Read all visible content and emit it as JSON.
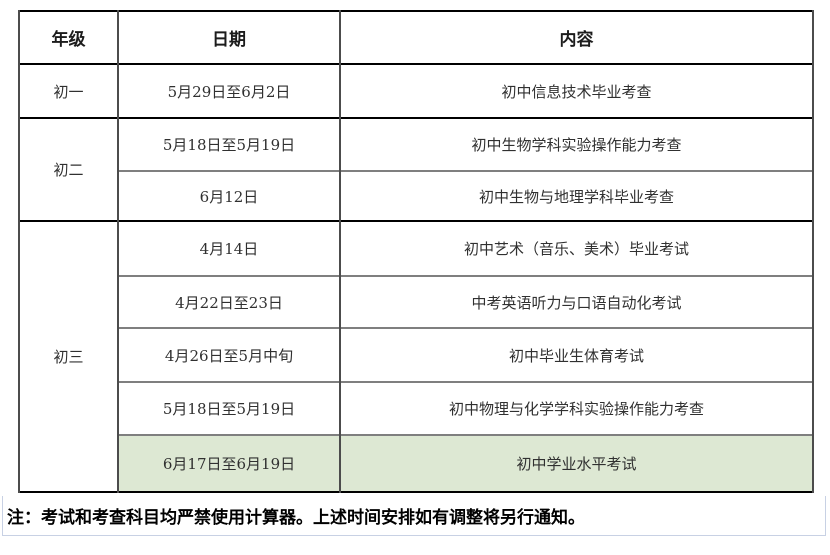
{
  "table": {
    "headers": {
      "grade": "年级",
      "date": "日期",
      "content": "内容"
    },
    "groups": [
      {
        "grade": "初一",
        "rows": [
          {
            "date": "5月29日至6月2日",
            "content": "初中信息技术毕业考查"
          }
        ]
      },
      {
        "grade": "初二",
        "rows": [
          {
            "date": "5月18日至5月19日",
            "content": "初中生物学科实验操作能力考查"
          },
          {
            "date": "6月12日",
            "content": "初中生物与地理学科毕业考查"
          }
        ]
      },
      {
        "grade": "初三",
        "rows": [
          {
            "date": "4月14日",
            "content": "初中艺术（音乐、美术）毕业考试"
          },
          {
            "date": "4月22日至23日",
            "content": "中考英语听力与口语自动化考试"
          },
          {
            "date": "4月26日至5月中旬",
            "content": "初中毕业生体育考试"
          },
          {
            "date": "5月18日至5月19日",
            "content": "初中物理与化学学科实验操作能力考查"
          },
          {
            "date": "6月17日至6月19日",
            "content": "初中学业水平考试",
            "highlighted": true
          }
        ]
      }
    ],
    "note": "注：考试和考查科目均严禁使用计算器。上述时间安排如有调整将另行通知。",
    "colors": {
      "highlight_green": "#dde8d3",
      "outer_border": "#000000",
      "column_border": "#4c4c4c",
      "inner_row_border": "#7f7f7f",
      "note_border": "#c8d1e4"
    }
  }
}
